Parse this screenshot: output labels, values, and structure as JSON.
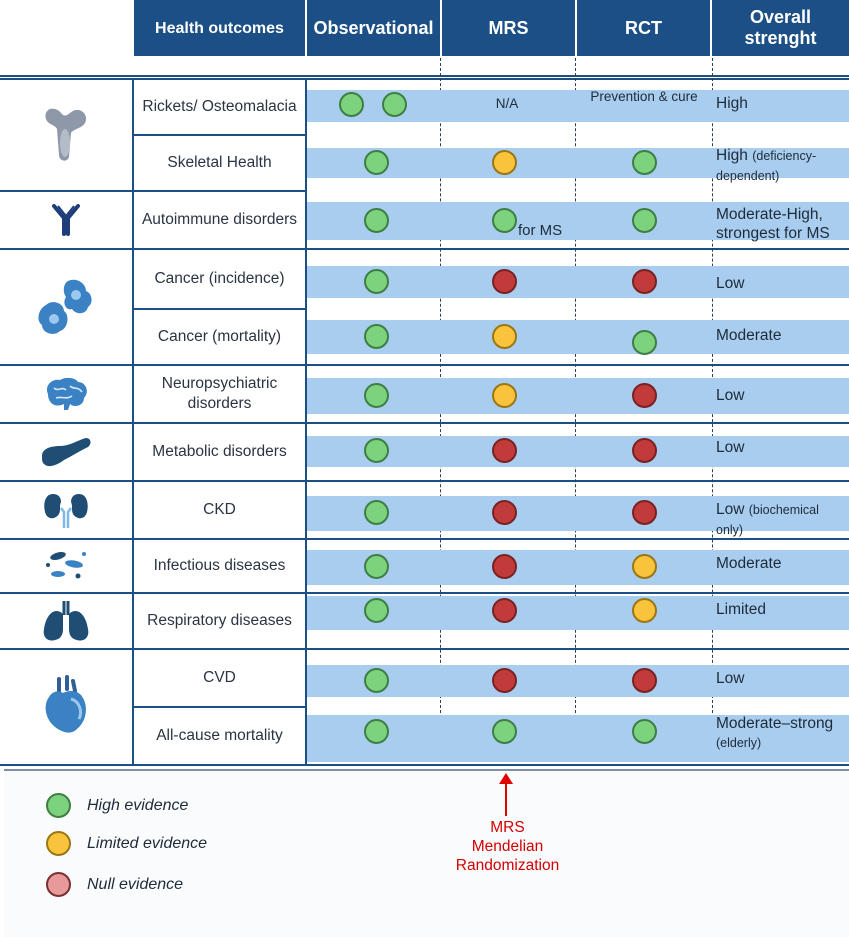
{
  "header": {
    "outcome": "Health outcomes",
    "observational": "Observational",
    "mrs": "MRS",
    "rct": "RCT",
    "strength": "Overall strenght"
  },
  "rows": [
    {
      "name": "Rickets/ Osteomalacia",
      "obs": [
        "high",
        "high"
      ],
      "mrs_text": "N/A",
      "rct_text": "Prevention & cure",
      "strength": "High",
      "strength_small": ""
    },
    {
      "name": "Skeletal Health",
      "obs": [
        "high"
      ],
      "mrs": "limited",
      "rct": "high",
      "strength": "High",
      "strength_small": "(deficiency-dependent)"
    },
    {
      "name": "Autoimmune disorders",
      "obs": [
        "high"
      ],
      "mrs": "high",
      "mrs_note": "for MS",
      "rct": "high",
      "strength": "Moderate-High, strongest for MS",
      "strength_small": ""
    },
    {
      "name": "Cancer (incidence)",
      "obs": [
        "high"
      ],
      "mrs": "null",
      "rct": "null",
      "strength": "Low",
      "strength_small": ""
    },
    {
      "name": "Cancer (mortality)",
      "obs": [
        "high"
      ],
      "mrs": "limited",
      "rct": "high",
      "strength": "Moderate",
      "strength_small": ""
    },
    {
      "name": "Neuropsychiatric disorders",
      "obs": [
        "high"
      ],
      "mrs": "limited",
      "rct": "null",
      "strength": "Low",
      "strength_small": ""
    },
    {
      "name": "Metabolic disorders",
      "obs": [
        "high"
      ],
      "mrs": "null",
      "rct": "null",
      "strength": "Low",
      "strength_small": ""
    },
    {
      "name": "CKD",
      "obs": [
        "high"
      ],
      "mrs": "null",
      "rct": "null",
      "strength": "Low",
      "strength_small": "(biochemical only)"
    },
    {
      "name": "Infectious diseases",
      "obs": [
        "high"
      ],
      "mrs": "null",
      "rct": "limited",
      "strength": "Moderate",
      "strength_small": ""
    },
    {
      "name": "Respiratory diseases",
      "obs": [
        "high"
      ],
      "mrs": "null",
      "rct": "limited",
      "strength": "Limited",
      "strength_small": ""
    },
    {
      "name": "CVD",
      "obs": [
        "high"
      ],
      "mrs": "null",
      "rct": "null",
      "strength": "Low",
      "strength_small": ""
    },
    {
      "name": "All-cause mortality",
      "obs": [
        "high"
      ],
      "mrs": "high",
      "rct": "high",
      "strength": "Moderate–strong",
      "strength_small": "(elderly)"
    }
  ],
  "icons": [
    "bone-icon",
    "antibody-icon",
    "cancer-cell-icon",
    "brain-icon",
    "pancreas-icon",
    "kidney-icon",
    "bacteria-icon",
    "lungs-icon",
    "heart-icon"
  ],
  "legend": {
    "high": "High evidence",
    "limited": "Limited evidence",
    "null": "Null evidence"
  },
  "note": {
    "line1": "MRS",
    "line2": "Mendelian",
    "line3": "Randomization"
  },
  "colors": {
    "header": "#1b4f86",
    "band": "#a9cdef",
    "high": "#7dd37d",
    "limited": "#f9c33c",
    "null": "#c13b3b",
    "icon": "#3b82c4",
    "annotation": "#d40000"
  }
}
